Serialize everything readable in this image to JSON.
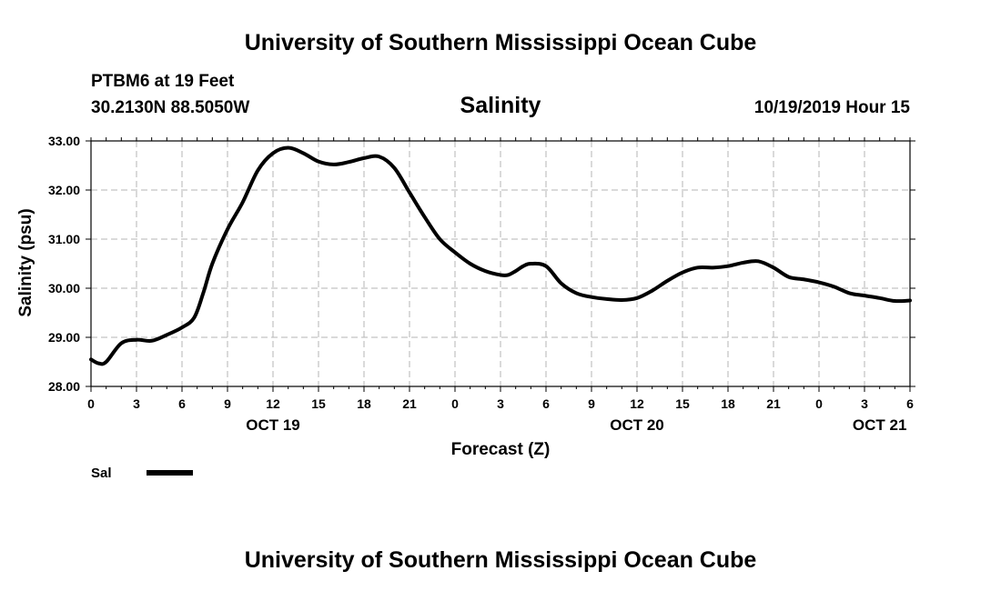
{
  "header": {
    "top_title": "University of Southern Mississippi Ocean Cube",
    "station": "PTBM6 at 19 Feet",
    "location": "30.2130N 88.5050W",
    "date_hour": "10/19/2019 Hour 15",
    "bottom_title": "University of Southern Mississippi Ocean Cube"
  },
  "chart_data": {
    "type": "line",
    "title": "Salinity",
    "xlabel": "Forecast (Z)",
    "ylabel": "Salinity (psu)",
    "ylim": [
      28.0,
      33.0
    ],
    "xlim_hours": [
      0,
      54
    ],
    "y_ticks": [
      "28.00",
      "29.00",
      "30.00",
      "31.00",
      "32.00",
      "33.00"
    ],
    "x_tick_labels": [
      "0",
      "3",
      "6",
      "9",
      "12",
      "15",
      "18",
      "21",
      "0",
      "3",
      "6",
      "9",
      "12",
      "15",
      "18",
      "21",
      "0",
      "3",
      "6"
    ],
    "date_labels": [
      {
        "label": "OCT 19",
        "hour": 12
      },
      {
        "label": "OCT 20",
        "hour": 36
      },
      {
        "label": "OCT 21",
        "hour": 52
      }
    ],
    "grid": true,
    "legend": {
      "placement": "bottom-left"
    },
    "series": [
      {
        "name": "Sal",
        "color": "#000000",
        "x": [
          0,
          0.5,
          1,
          2,
          3,
          4,
          5,
          6,
          6.8,
          7.4,
          8,
          9,
          10,
          11,
          12,
          13,
          14,
          15,
          16,
          17,
          18,
          19,
          20,
          21,
          22,
          23,
          24,
          25,
          26,
          27,
          27.5,
          28,
          28.5,
          29,
          30,
          31,
          32,
          33,
          34,
          35,
          36,
          37,
          38,
          39,
          40,
          41,
          42,
          43,
          44,
          45,
          46,
          47,
          48,
          49,
          50,
          51,
          52,
          53,
          54
        ],
        "values": [
          28.55,
          28.47,
          28.5,
          28.88,
          28.95,
          28.93,
          29.05,
          29.2,
          29.4,
          29.9,
          30.5,
          31.2,
          31.75,
          32.4,
          32.75,
          32.86,
          32.75,
          32.58,
          32.52,
          32.57,
          32.65,
          32.68,
          32.45,
          31.95,
          31.45,
          31.0,
          30.73,
          30.5,
          30.35,
          30.27,
          30.27,
          30.35,
          30.45,
          30.5,
          30.45,
          30.1,
          29.9,
          29.82,
          29.78,
          29.76,
          29.8,
          29.95,
          30.15,
          30.32,
          30.42,
          30.42,
          30.45,
          30.52,
          30.55,
          30.42,
          30.23,
          30.18,
          30.12,
          30.03,
          29.9,
          29.85,
          29.8,
          29.74,
          29.75
        ]
      }
    ]
  }
}
